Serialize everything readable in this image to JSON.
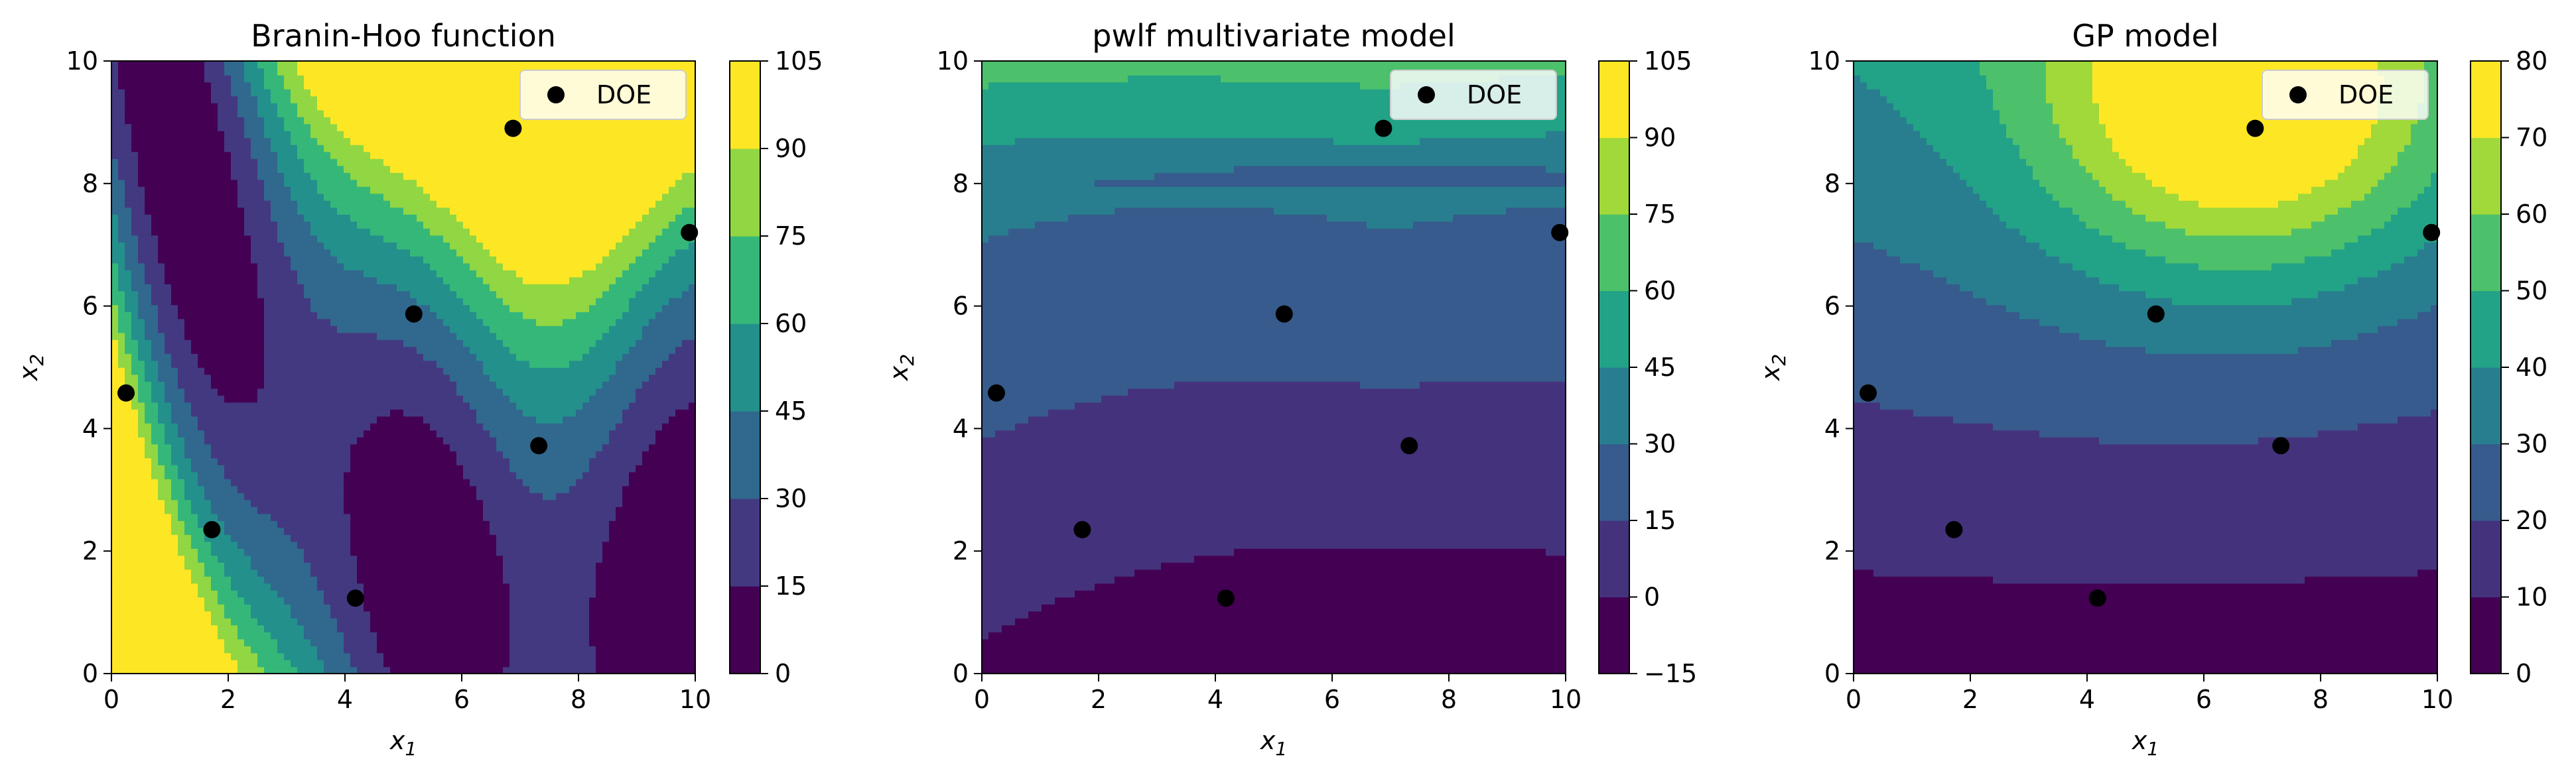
{
  "chart_data": [
    {
      "type": "contour",
      "title": "Branin-Hoo function",
      "xlabel": "x",
      "xlabel_sub": "1",
      "ylabel": "x",
      "ylabel_sub": "2",
      "xlim": [
        0,
        10
      ],
      "ylim": [
        0,
        10
      ],
      "xticks": [
        "0",
        "2",
        "4",
        "6",
        "8",
        "10"
      ],
      "yticks": [
        "0",
        "2",
        "4",
        "6",
        "8",
        "10"
      ],
      "colorbar_levels": [
        0,
        15,
        30,
        45,
        60,
        75,
        90,
        105
      ],
      "colorbar_ticks": [
        "0",
        "15",
        "30",
        "45",
        "60",
        "75",
        "90",
        "105"
      ],
      "legend": {
        "label": "DOE",
        "location": "upper right"
      },
      "series": [
        {
          "name": "DOE",
          "type": "scatter",
          "x": [
            0.25,
            1.72,
            4.18,
            5.18,
            6.88,
            7.32,
            9.9
          ],
          "y": [
            4.58,
            2.35,
            1.23,
            5.87,
            8.9,
            3.72,
            7.2
          ]
        }
      ]
    },
    {
      "type": "contour",
      "title": "pwlf multivariate model",
      "xlabel": "x",
      "xlabel_sub": "1",
      "ylabel": "x",
      "ylabel_sub": "2",
      "xlim": [
        0,
        10
      ],
      "ylim": [
        0,
        10
      ],
      "xticks": [
        "0",
        "2",
        "4",
        "6",
        "8",
        "10"
      ],
      "yticks": [
        "0",
        "2",
        "4",
        "6",
        "8",
        "10"
      ],
      "colorbar_levels": [
        -15,
        0,
        15,
        30,
        45,
        60,
        75,
        90,
        105
      ],
      "colorbar_ticks": [
        "−15",
        "0",
        "15",
        "30",
        "45",
        "60",
        "75",
        "90",
        "105"
      ],
      "legend": {
        "label": "DOE",
        "location": "upper right"
      },
      "series": [
        {
          "name": "DOE",
          "type": "scatter",
          "x": [
            0.25,
            1.72,
            4.18,
            5.18,
            6.88,
            7.32,
            9.9
          ],
          "y": [
            4.58,
            2.35,
            1.23,
            5.87,
            8.9,
            3.72,
            7.2
          ]
        }
      ]
    },
    {
      "type": "contour",
      "title": "GP model",
      "xlabel": "x",
      "xlabel_sub": "1",
      "ylabel": "x",
      "ylabel_sub": "2",
      "xlim": [
        0,
        10
      ],
      "ylim": [
        0,
        10
      ],
      "xticks": [
        "0",
        "2",
        "4",
        "6",
        "8",
        "10"
      ],
      "yticks": [
        "0",
        "2",
        "4",
        "6",
        "8",
        "10"
      ],
      "colorbar_levels": [
        0,
        10,
        20,
        30,
        40,
        50,
        60,
        70,
        80
      ],
      "colorbar_ticks": [
        "0",
        "10",
        "20",
        "30",
        "40",
        "50",
        "60",
        "70",
        "80"
      ],
      "legend": {
        "label": "DOE",
        "location": "upper right"
      },
      "series": [
        {
          "name": "DOE",
          "type": "scatter",
          "x": [
            0.25,
            1.72,
            4.18,
            5.18,
            6.88,
            7.32,
            9.9
          ],
          "y": [
            4.58,
            2.35,
            1.23,
            5.87,
            8.9,
            3.72,
            7.2
          ]
        }
      ]
    }
  ],
  "colors": {
    "colormap": "viridis",
    "marker": "#000000"
  }
}
